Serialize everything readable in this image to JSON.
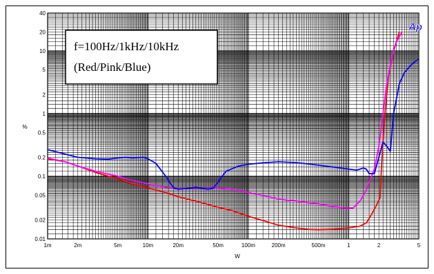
{
  "chart_data": {
    "type": "line",
    "title": "",
    "xlabel": "W",
    "ylabel": "%",
    "x_scale": "log",
    "y_scale": "log",
    "xlim": [
      0.001,
      5
    ],
    "ylim": [
      0.01,
      40
    ],
    "grid": true,
    "x_ticks": [
      {
        "value": 0.001,
        "label": "1m"
      },
      {
        "value": 0.002,
        "label": "2m"
      },
      {
        "value": 0.005,
        "label": "5m"
      },
      {
        "value": 0.01,
        "label": "10m"
      },
      {
        "value": 0.02,
        "label": "20m"
      },
      {
        "value": 0.05,
        "label": "50m"
      },
      {
        "value": 0.1,
        "label": "100m"
      },
      {
        "value": 0.2,
        "label": "200m"
      },
      {
        "value": 0.5,
        "label": "500m"
      },
      {
        "value": 1,
        "label": "1"
      },
      {
        "value": 2,
        "label": "2"
      },
      {
        "value": 5,
        "label": "5"
      }
    ],
    "y_ticks": [
      {
        "value": 0.01,
        "label": "0.01"
      },
      {
        "value": 0.02,
        "label": "0.02"
      },
      {
        "value": 0.05,
        "label": "0.05"
      },
      {
        "value": 0.1,
        "label": "0.1"
      },
      {
        "value": 0.2,
        "label": "0.2"
      },
      {
        "value": 0.5,
        "label": "0.5"
      },
      {
        "value": 1,
        "label": "1"
      },
      {
        "value": 2,
        "label": "2"
      },
      {
        "value": 5,
        "label": "5"
      },
      {
        "value": 10,
        "label": "10"
      },
      {
        "value": 20,
        "label": "20"
      },
      {
        "value": 40,
        "label": "40"
      }
    ],
    "annotation": [
      "f=100Hz/1kHz/10kHz",
      "(Red/Pink/Blue)"
    ],
    "logo": "Ap",
    "series": [
      {
        "color": "#ff0000",
        "points": [
          [
            0.001,
            0.19
          ],
          [
            0.0015,
            0.17
          ],
          [
            0.002,
            0.145
          ],
          [
            0.003,
            0.115
          ],
          [
            0.005,
            0.09
          ],
          [
            0.007,
            0.075
          ],
          [
            0.01,
            0.065
          ],
          [
            0.015,
            0.055
          ],
          [
            0.02,
            0.047
          ],
          [
            0.03,
            0.04
          ],
          [
            0.05,
            0.032
          ],
          [
            0.07,
            0.028
          ],
          [
            0.1,
            0.023
          ],
          [
            0.15,
            0.019
          ],
          [
            0.2,
            0.0165
          ],
          [
            0.3,
            0.015
          ],
          [
            0.4,
            0.0142
          ],
          [
            0.5,
            0.014
          ],
          [
            0.7,
            0.0143
          ],
          [
            1,
            0.015
          ],
          [
            1.3,
            0.016
          ],
          [
            1.5,
            0.018
          ],
          [
            1.7,
            0.025
          ],
          [
            1.9,
            0.035
          ],
          [
            2.05,
            0.045
          ],
          [
            2.15,
            0.2
          ],
          [
            2.3,
            1.0
          ],
          [
            2.5,
            4.0
          ],
          [
            2.8,
            10.0
          ],
          [
            3.2,
            20.0
          ]
        ]
      },
      {
        "color": "#ff00ff",
        "points": [
          [
            0.001,
            0.195
          ],
          [
            0.0015,
            0.17
          ],
          [
            0.002,
            0.145
          ],
          [
            0.003,
            0.12
          ],
          [
            0.005,
            0.1
          ],
          [
            0.007,
            0.085
          ],
          [
            0.01,
            0.075
          ],
          [
            0.015,
            0.066
          ],
          [
            0.02,
            0.064
          ],
          [
            0.03,
            0.064
          ],
          [
            0.05,
            0.065
          ],
          [
            0.07,
            0.062
          ],
          [
            0.1,
            0.055
          ],
          [
            0.15,
            0.048
          ],
          [
            0.2,
            0.043
          ],
          [
            0.3,
            0.04
          ],
          [
            0.5,
            0.036
          ],
          [
            0.7,
            0.033
          ],
          [
            0.9,
            0.031
          ],
          [
            1.1,
            0.031
          ],
          [
            1.3,
            0.04
          ],
          [
            1.5,
            0.06
          ],
          [
            1.8,
            0.13
          ],
          [
            2.0,
            0.3
          ],
          [
            2.2,
            1.0
          ],
          [
            2.4,
            3.0
          ],
          [
            2.7,
            8.0
          ],
          [
            3.0,
            14.0
          ],
          [
            3.4,
            20.0
          ]
        ]
      },
      {
        "color": "#0000ff",
        "points": [
          [
            0.001,
            0.265
          ],
          [
            0.0015,
            0.225
          ],
          [
            0.002,
            0.2
          ],
          [
            0.003,
            0.19
          ],
          [
            0.004,
            0.187
          ],
          [
            0.005,
            0.195
          ],
          [
            0.006,
            0.2
          ],
          [
            0.007,
            0.195
          ],
          [
            0.009,
            0.2
          ],
          [
            0.01,
            0.19
          ],
          [
            0.012,
            0.16
          ],
          [
            0.015,
            0.1
          ],
          [
            0.018,
            0.065
          ],
          [
            0.02,
            0.062
          ],
          [
            0.025,
            0.064
          ],
          [
            0.03,
            0.066
          ],
          [
            0.04,
            0.062
          ],
          [
            0.045,
            0.065
          ],
          [
            0.06,
            0.12
          ],
          [
            0.08,
            0.145
          ],
          [
            0.1,
            0.155
          ],
          [
            0.15,
            0.165
          ],
          [
            0.2,
            0.17
          ],
          [
            0.3,
            0.165
          ],
          [
            0.5,
            0.15
          ],
          [
            0.7,
            0.14
          ],
          [
            1,
            0.13
          ],
          [
            1.2,
            0.125
          ],
          [
            1.4,
            0.135
          ],
          [
            1.5,
            0.13
          ],
          [
            1.6,
            0.11
          ],
          [
            1.8,
            0.11
          ],
          [
            2.0,
            0.2
          ],
          [
            2.2,
            0.35
          ],
          [
            2.4,
            0.3
          ],
          [
            2.6,
            0.25
          ],
          [
            2.8,
            1.0
          ],
          [
            3.2,
            3.0
          ],
          [
            3.6,
            4.5
          ],
          [
            4.2,
            6.0
          ],
          [
            5.0,
            7.5
          ]
        ]
      }
    ]
  }
}
